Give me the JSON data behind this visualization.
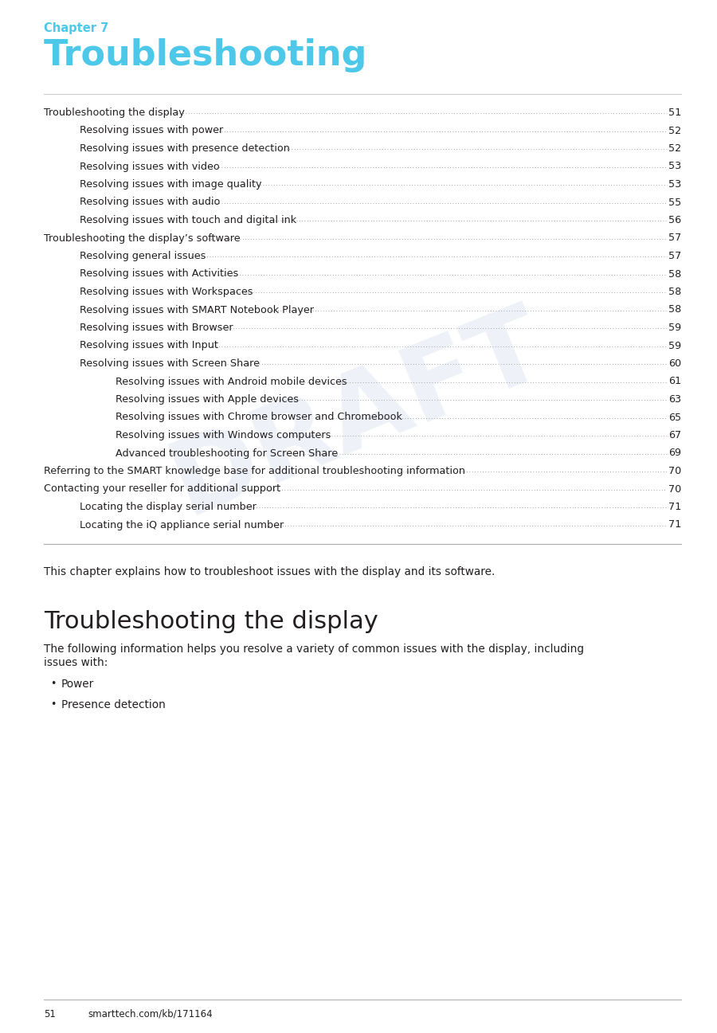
{
  "bg_color": "#ffffff",
  "cyan_color": "#4DC8E8",
  "text_color": "#231f20",
  "gray_text": "#555555",
  "chapter_label": "Chapter 7",
  "chapter_title": "Troubleshooting",
  "toc_entries": [
    {
      "text": "Troubleshooting the display",
      "page": "51",
      "indent": 0
    },
    {
      "text": "Resolving issues with power",
      "page": "52",
      "indent": 1
    },
    {
      "text": "Resolving issues with presence detection",
      "page": "52",
      "indent": 1
    },
    {
      "text": "Resolving issues with video",
      "page": "53",
      "indent": 1
    },
    {
      "text": "Resolving issues with image quality",
      "page": "53",
      "indent": 1
    },
    {
      "text": "Resolving issues with audio",
      "page": "55",
      "indent": 1
    },
    {
      "text": "Resolving issues with touch and digital ink",
      "page": "56",
      "indent": 1
    },
    {
      "text": "Troubleshooting the display’s software",
      "page": "57",
      "indent": 0
    },
    {
      "text": "Resolving general issues",
      "page": "57",
      "indent": 1
    },
    {
      "text": "Resolving issues with Activities",
      "page": "58",
      "indent": 1
    },
    {
      "text": "Resolving issues with Workspaces",
      "page": "58",
      "indent": 1
    },
    {
      "text": "Resolving issues with SMART Notebook Player",
      "page": "58",
      "indent": 1
    },
    {
      "text": "Resolving issues with Browser",
      "page": "59",
      "indent": 1
    },
    {
      "text": "Resolving issues with Input",
      "page": "59",
      "indent": 1
    },
    {
      "text": "Resolving issues with Screen Share",
      "page": "60",
      "indent": 1
    },
    {
      "text": "Resolving issues with Android mobile devices",
      "page": "61",
      "indent": 2
    },
    {
      "text": "Resolving issues with Apple devices",
      "page": "63",
      "indent": 2
    },
    {
      "text": "Resolving issues with Chrome browser and Chromebook",
      "page": "65",
      "indent": 2
    },
    {
      "text": "Resolving issues with Windows computers",
      "page": "67",
      "indent": 2
    },
    {
      "text": "Advanced troubleshooting for Screen Share",
      "page": "69",
      "indent": 2
    },
    {
      "text": "Referring to the SMART knowledge base for additional troubleshooting information",
      "page": "70",
      "indent": 0
    },
    {
      "text": "Contacting your reseller for additional support",
      "page": "70",
      "indent": 0
    },
    {
      "text": "Locating the display serial number",
      "page": "71",
      "indent": 1
    },
    {
      "text": "Locating the iQ appliance serial number",
      "page": " 71",
      "indent": 1
    }
  ],
  "section_title": "Troubleshooting the display",
  "intro_text": "This chapter explains how to troubleshoot issues with the display and its software.",
  "section_body_line1": "The following information helps you resolve a variety of common issues with the display, including",
  "section_body_line2": "issues with:",
  "bullet_items": [
    "Power",
    "Presence detection"
  ],
  "footer_page": "51",
  "footer_url": "smarttech.com/kb/171164",
  "draft_watermark": "DRAFT",
  "toc_fontsize": 9.5,
  "indent_sizes": [
    0,
    45,
    90
  ]
}
